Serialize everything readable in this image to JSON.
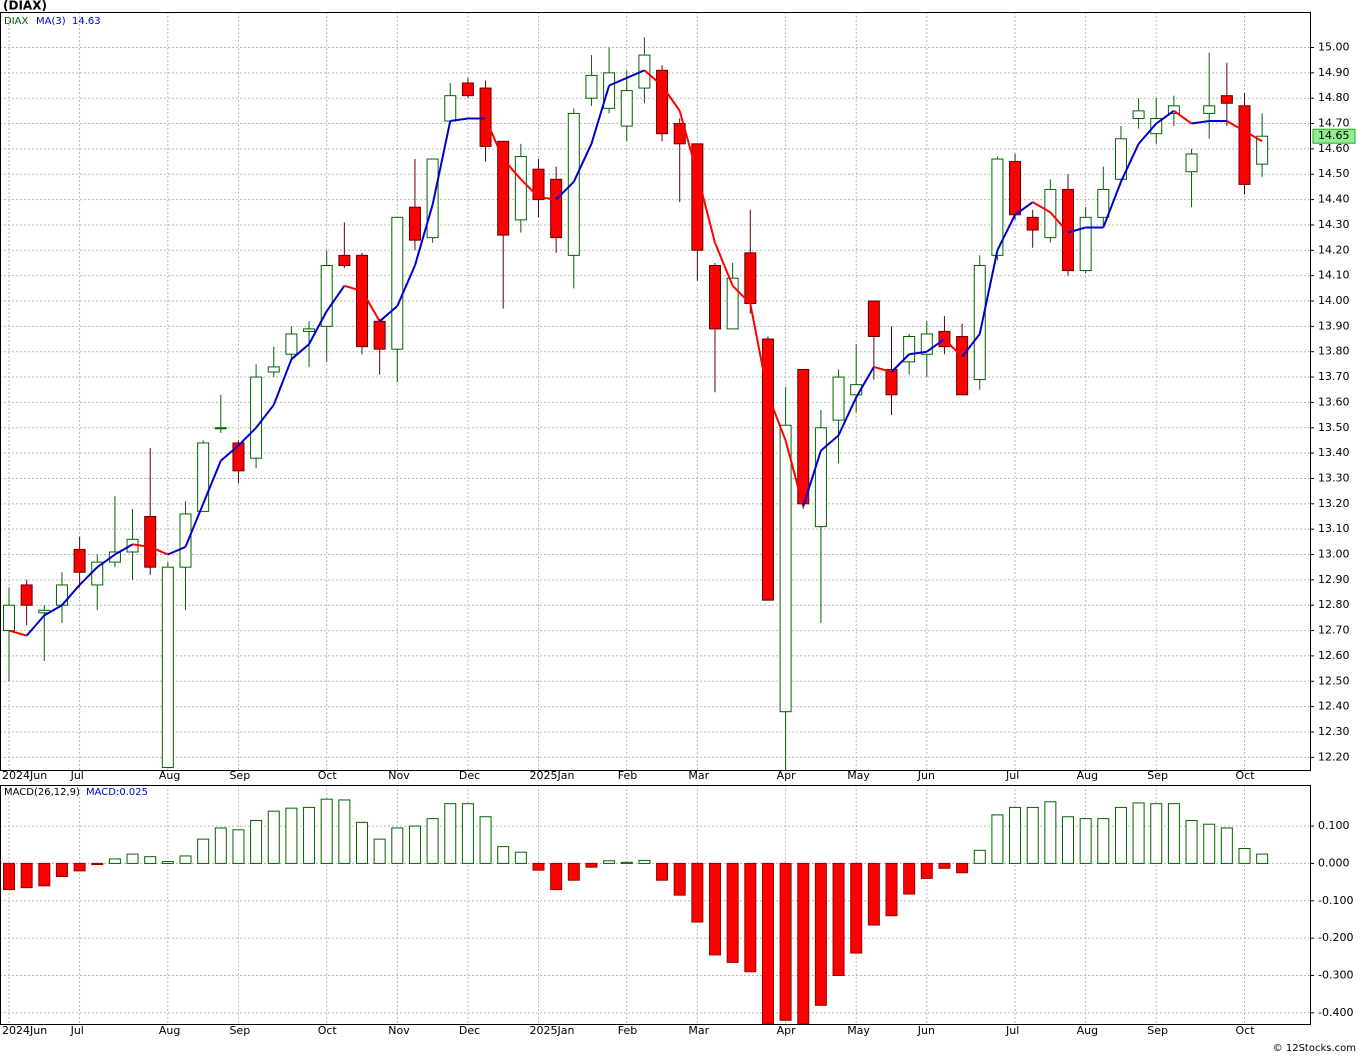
{
  "chart_data": [
    {
      "type": "candlestick",
      "title": "(DIAX)",
      "symbol": "DIAX",
      "footer": "© 12Stocks.com",
      "categories": [
        "2024Jun",
        null,
        null,
        null,
        "Jul",
        null,
        null,
        null,
        null,
        "Aug",
        null,
        null,
        null,
        "Sep",
        null,
        null,
        null,
        null,
        "Oct",
        null,
        null,
        null,
        "Nov",
        null,
        null,
        null,
        "Dec",
        null,
        null,
        null,
        "2025Jan",
        null,
        null,
        null,
        null,
        "Feb",
        null,
        null,
        null,
        "Mar",
        null,
        null,
        null,
        null,
        "Apr",
        null,
        null,
        null,
        "May",
        null,
        null,
        null,
        "Jun",
        null,
        null,
        null,
        null,
        "Jul",
        null,
        null,
        null,
        "Aug",
        null,
        null,
        null,
        "Sep",
        null,
        null,
        null,
        null,
        "Oct",
        null
      ],
      "open": [
        12.7,
        12.88,
        12.77,
        12.8,
        13.02,
        12.88,
        12.97,
        13.01,
        13.15,
        12.16,
        12.95,
        13.17,
        13.5,
        13.44,
        13.38,
        13.72,
        13.79,
        13.88,
        13.9,
        14.18,
        14.18,
        13.92,
        13.81,
        14.37,
        14.25,
        14.71,
        14.86,
        14.84,
        14.63,
        14.32,
        14.52,
        14.48,
        14.18,
        14.8,
        14.76,
        14.69,
        14.84,
        14.91,
        14.7,
        14.62,
        14.14,
        13.89,
        14.19,
        13.85,
        12.38,
        13.73,
        13.11,
        13.53,
        13.63,
        14.0,
        13.73,
        13.76,
        13.79,
        13.88,
        13.86,
        13.69,
        14.18,
        14.55,
        14.33,
        14.25,
        14.44,
        14.12,
        14.33,
        14.48,
        14.72,
        14.66,
        14.74,
        14.51,
        14.74,
        14.81,
        14.77,
        14.54
      ],
      "high": [
        12.87,
        12.9,
        12.8,
        12.93,
        13.07,
        13.0,
        13.23,
        13.18,
        13.42,
        12.97,
        13.21,
        13.45,
        13.63,
        13.45,
        13.75,
        13.82,
        13.9,
        13.92,
        14.2,
        14.31,
        14.19,
        13.93,
        14.33,
        14.56,
        14.56,
        14.86,
        14.88,
        14.87,
        14.63,
        14.62,
        14.56,
        14.53,
        14.76,
        14.97,
        15.0,
        14.91,
        15.04,
        14.93,
        14.72,
        14.62,
        14.15,
        14.15,
        14.36,
        13.86,
        13.66,
        13.73,
        13.57,
        13.73,
        13.83,
        14.0,
        13.9,
        13.87,
        13.92,
        13.94,
        13.91,
        14.18,
        14.57,
        14.58,
        14.36,
        14.48,
        14.5,
        14.37,
        14.53,
        14.69,
        14.8,
        14.8,
        14.81,
        14.6,
        14.98,
        14.94,
        14.82,
        14.74
      ],
      "low": [
        12.5,
        12.72,
        12.58,
        12.73,
        12.87,
        12.78,
        12.95,
        12.9,
        12.92,
        12.16,
        12.78,
        13.17,
        13.48,
        13.28,
        13.34,
        13.7,
        13.76,
        13.74,
        13.76,
        14.13,
        13.79,
        13.71,
        13.68,
        14.2,
        14.23,
        14.7,
        14.8,
        14.55,
        13.97,
        14.27,
        14.33,
        14.19,
        14.05,
        14.77,
        14.74,
        14.63,
        14.78,
        14.63,
        14.39,
        14.08,
        13.64,
        13.89,
        13.95,
        12.82,
        12.15,
        13.18,
        12.73,
        13.36,
        13.56,
        13.69,
        13.55,
        13.71,
        13.7,
        13.79,
        13.63,
        13.65,
        14.16,
        14.32,
        14.21,
        14.23,
        14.1,
        14.11,
        14.29,
        14.46,
        14.68,
        14.62,
        14.69,
        14.37,
        14.64,
        14.69,
        14.42,
        14.49
      ],
      "close": [
        12.8,
        12.8,
        12.78,
        12.88,
        12.93,
        12.97,
        13.01,
        13.06,
        12.95,
        12.95,
        13.16,
        13.44,
        13.5,
        13.33,
        13.7,
        13.74,
        13.87,
        13.89,
        14.14,
        14.14,
        13.82,
        13.81,
        14.33,
        14.24,
        14.56,
        14.81,
        14.81,
        14.61,
        14.26,
        14.57,
        14.4,
        14.25,
        14.74,
        14.89,
        14.9,
        14.83,
        14.97,
        14.66,
        14.62,
        14.2,
        13.89,
        14.09,
        13.99,
        12.82,
        13.51,
        13.2,
        13.5,
        13.7,
        13.67,
        13.86,
        13.63,
        13.86,
        13.87,
        13.82,
        13.63,
        14.14,
        14.56,
        14.34,
        14.28,
        14.44,
        14.12,
        14.33,
        14.44,
        14.64,
        14.75,
        14.72,
        14.77,
        14.58,
        14.77,
        14.78,
        14.46,
        14.65
      ],
      "up_color": "#006400",
      "down_color": "#ff0000",
      "ma": {
        "name": "MA(3)",
        "rising_color": "#0000cc",
        "falling_color": "#ff0000",
        "values": [
          12.7,
          12.68,
          12.76,
          12.8,
          12.88,
          12.95,
          13.0,
          13.04,
          13.03,
          13.0,
          13.03,
          13.2,
          13.37,
          13.43,
          13.5,
          13.59,
          13.77,
          13.83,
          13.96,
          14.06,
          14.04,
          13.92,
          13.98,
          14.14,
          14.38,
          14.71,
          14.72,
          14.72,
          14.56,
          14.48,
          14.41,
          14.4,
          14.47,
          14.62,
          14.85,
          14.88,
          14.91,
          14.85,
          14.75,
          14.5,
          14.23,
          14.06,
          13.99,
          13.63,
          13.45,
          13.19,
          13.41,
          13.47,
          13.62,
          13.74,
          13.72,
          13.79,
          13.8,
          13.85,
          13.78,
          13.87,
          14.2,
          14.34,
          14.39,
          14.35,
          14.27,
          14.29,
          14.29,
          14.47,
          14.62,
          14.7,
          14.75,
          14.7,
          14.71,
          14.71,
          14.67,
          14.63
        ]
      },
      "ylim": [
        12.15,
        15.14
      ],
      "yticks": [
        {
          "value": 12.2,
          "label": "12.20"
        },
        {
          "value": 12.3,
          "label": "12.30"
        },
        {
          "value": 12.4,
          "label": "12.40"
        },
        {
          "value": 12.5,
          "label": "12.50"
        },
        {
          "value": 12.6,
          "label": "12.60"
        },
        {
          "value": 12.7,
          "label": "12.70"
        },
        {
          "value": 12.8,
          "label": "12.80"
        },
        {
          "value": 12.9,
          "label": "12.90"
        },
        {
          "value": 13.0,
          "label": "13.00"
        },
        {
          "value": 13.1,
          "label": "13.10"
        },
        {
          "value": 13.2,
          "label": "13.20"
        },
        {
          "value": 13.3,
          "label": "13.30"
        },
        {
          "value": 13.4,
          "label": "13.40"
        },
        {
          "value": 13.5,
          "label": "13.50"
        },
        {
          "value": 13.6,
          "label": "13.60"
        },
        {
          "value": 13.7,
          "label": "13.70"
        },
        {
          "value": 13.8,
          "label": "13.80"
        },
        {
          "value": 13.9,
          "label": "13.90"
        },
        {
          "value": 14.0,
          "label": "14.00"
        },
        {
          "value": 14.1,
          "label": "14.10"
        },
        {
          "value": 14.2,
          "label": "14.20"
        },
        {
          "value": 14.3,
          "label": "14.30"
        },
        {
          "value": 14.4,
          "label": "14.40"
        },
        {
          "value": 14.5,
          "label": "14.50"
        },
        {
          "value": 14.6,
          "label": "14.60"
        },
        {
          "value": 14.7,
          "label": "14.70"
        },
        {
          "value": 14.8,
          "label": "14.80"
        },
        {
          "value": 14.9,
          "label": "14.90"
        },
        {
          "value": 15.0,
          "label": "15.00"
        }
      ],
      "grid": true
    },
    {
      "type": "bar",
      "title": "MACD(26,12,9)",
      "legend": "MACD:0.025",
      "values": [
        -0.07,
        -0.065,
        -0.06,
        -0.035,
        -0.02,
        -0.003,
        0.012,
        0.025,
        0.018,
        0.005,
        0.02,
        0.065,
        0.095,
        0.09,
        0.115,
        0.14,
        0.148,
        0.15,
        0.172,
        0.17,
        0.11,
        0.065,
        0.095,
        0.1,
        0.12,
        0.16,
        0.16,
        0.125,
        0.045,
        0.03,
        -0.018,
        -0.07,
        -0.045,
        -0.01,
        0.007,
        0.003,
        0.008,
        -0.045,
        -0.085,
        -0.157,
        -0.245,
        -0.265,
        -0.29,
        -0.43,
        -0.42,
        -0.43,
        -0.38,
        -0.3,
        -0.24,
        -0.165,
        -0.14,
        -0.082,
        -0.04,
        -0.013,
        -0.025,
        0.035,
        0.13,
        0.15,
        0.15,
        0.165,
        0.125,
        0.12,
        0.12,
        0.15,
        0.162,
        0.16,
        0.16,
        0.115,
        0.105,
        0.095,
        0.04,
        0.025
      ],
      "positive_color": "#006400",
      "negative_color": "#ff0000",
      "ylim": [
        -0.43,
        0.21
      ],
      "yticks": [
        {
          "value": 0.1,
          "label": "0.100"
        },
        {
          "value": 0,
          "label": "0.000"
        },
        {
          "value": -0.1,
          "label": "-0.100"
        },
        {
          "value": -0.2,
          "label": "-0.200"
        },
        {
          "value": -0.3,
          "label": "-0.300"
        },
        {
          "value": -0.4,
          "label": "-0.400"
        }
      ],
      "grid": true
    }
  ]
}
